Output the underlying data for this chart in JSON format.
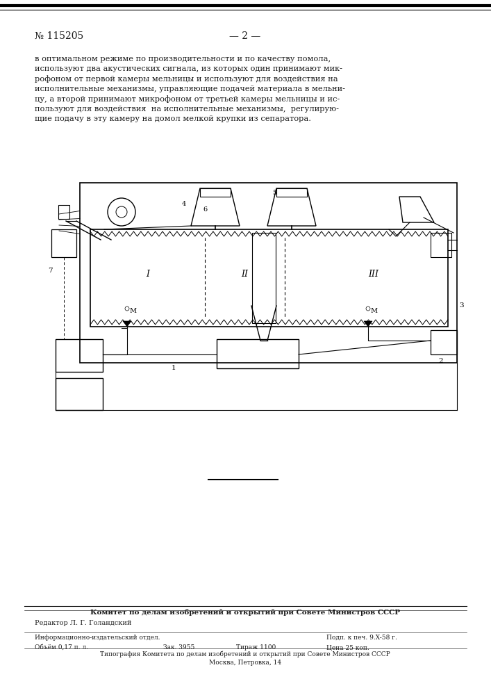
{
  "page_number": "№ 115205",
  "page_num_center": "— 2 —",
  "bg_color": "#ffffff",
  "text_color": "#1a1a1a",
  "main_text": "в оптимальном режиме по производительности и по качеству помола,\nиспользуют два акустических сигнала, из которых один принимают мик-\nрофоном от первой камеры мельницы и используют для воздействия на\nисполнительные механизмы, управляющие подачей материала в мельни-\nцу, а второй принимают микрофоном от третьей камеры мельницы и ис-\nпользуют для воздействия  на исполнительные механизмы,  регулирую-\nщие подачу в эту камеру на домол мелкой крупки из сепаратора.",
  "footer_bold": "Комитет по делам изобретений и открытий при Совете Министров СССР",
  "footer_editor": "Редактор Л. Г. Голандский",
  "footer_info_dept": "Информационно-издательский отдел.",
  "footer_sign": "Подп. к печ. 9.X-58 г.",
  "footer_volume": "Объём 0,17 п. л.",
  "footer_order": "Зак. 3955",
  "footer_circulation": "Тираж 1100",
  "footer_price": "Цена 25 коп.",
  "footer_print": "Типография Комитета по делам изобретений и открытий при Совете Министров СССР",
  "footer_address": "Москва, Петровка, 14"
}
